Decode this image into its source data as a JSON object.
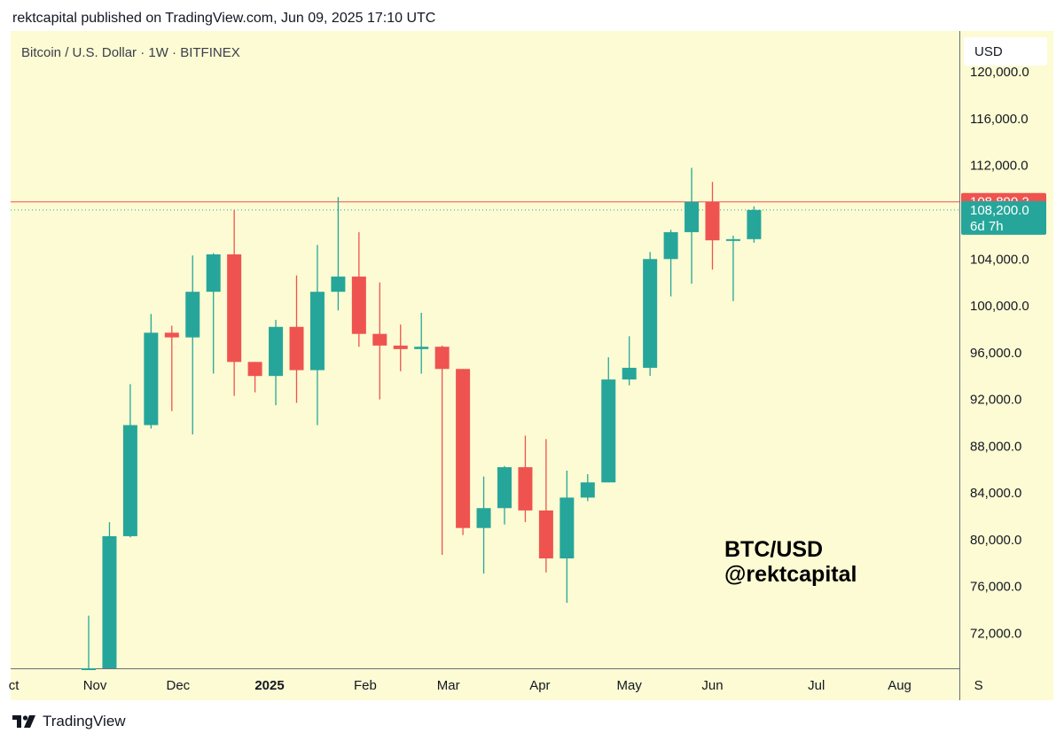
{
  "header": {
    "published": "rektcapital published on TradingView.com, Jun 09, 2025 17:10 UTC"
  },
  "footer": {
    "brand": "TradingView"
  },
  "colors": {
    "up": "#26a69a",
    "down": "#ef5350",
    "background": "#fdfbd3",
    "price_line": "#ef5350"
  },
  "chart_data": {
    "type": "candlestick",
    "symbol": "Bitcoin / U.S. Dollar · 1W · BITFINEX",
    "currency": "USD",
    "watermark": [
      "BTC/USD",
      "@rektcapital"
    ],
    "ylim": [
      69000,
      123500
    ],
    "y_ticks": [
      72000,
      76000,
      80000,
      84000,
      88000,
      92000,
      96000,
      100000,
      104000,
      108000,
      112000,
      116000,
      120000
    ],
    "y_tick_labels": [
      "72,000.0",
      "76,000.0",
      "80,000.0",
      "84,000.0",
      "88,000.0",
      "92,000.0",
      "96,000.0",
      "100,000.0",
      "104,000.0",
      "108,000.0",
      "112,000.0",
      "116,000.0",
      "120,000.0"
    ],
    "x_labels": [
      {
        "label": "ct",
        "slot": -3.6,
        "bold": false
      },
      {
        "label": "Nov",
        "slot": 0.3,
        "bold": false
      },
      {
        "label": "Dec",
        "slot": 4.3,
        "bold": false
      },
      {
        "label": "2025",
        "slot": 8.7,
        "bold": true
      },
      {
        "label": "Feb",
        "slot": 13.3,
        "bold": false
      },
      {
        "label": "Mar",
        "slot": 17.3,
        "bold": false
      },
      {
        "label": "Apr",
        "slot": 21.7,
        "bold": false
      },
      {
        "label": "May",
        "slot": 26.0,
        "bold": false
      },
      {
        "label": "Jun",
        "slot": 30.0,
        "bold": false
      },
      {
        "label": "Jul",
        "slot": 35.0,
        "bold": false
      },
      {
        "label": "Aug",
        "slot": 39.0,
        "bold": false
      },
      {
        "label": "S",
        "slot": 42.8,
        "bold": false
      }
    ],
    "candles": [
      {
        "o": 69000,
        "h": 73500,
        "l": 69000,
        "c": 69000
      },
      {
        "o": 69000,
        "h": 81500,
        "l": 69000,
        "c": 80300
      },
      {
        "o": 80300,
        "h": 93300,
        "l": 80200,
        "c": 89800
      },
      {
        "o": 89800,
        "h": 99300,
        "l": 89500,
        "c": 97700
      },
      {
        "o": 97700,
        "h": 98300,
        "l": 91000,
        "c": 97300
      },
      {
        "o": 97300,
        "h": 104300,
        "l": 89000,
        "c": 101200
      },
      {
        "o": 101200,
        "h": 104500,
        "l": 94200,
        "c": 104400
      },
      {
        "o": 104400,
        "h": 108200,
        "l": 92300,
        "c": 95200
      },
      {
        "o": 95200,
        "h": 94800,
        "l": 92600,
        "c": 94000
      },
      {
        "o": 94000,
        "h": 98800,
        "l": 91500,
        "c": 98200
      },
      {
        "o": 98200,
        "h": 102600,
        "l": 91700,
        "c": 94500
      },
      {
        "o": 94500,
        "h": 105200,
        "l": 89800,
        "c": 101200
      },
      {
        "o": 101200,
        "h": 109300,
        "l": 99600,
        "c": 102500
      },
      {
        "o": 102500,
        "h": 106300,
        "l": 96500,
        "c": 97600
      },
      {
        "o": 97600,
        "h": 102000,
        "l": 92000,
        "c": 96600
      },
      {
        "o": 96600,
        "h": 98400,
        "l": 94400,
        "c": 96300
      },
      {
        "o": 96300,
        "h": 99400,
        "l": 94200,
        "c": 96500
      },
      {
        "o": 96500,
        "h": 96600,
        "l": 78700,
        "c": 94600
      },
      {
        "o": 94600,
        "h": 94500,
        "l": 80400,
        "c": 81000
      },
      {
        "o": 81000,
        "h": 85400,
        "l": 77100,
        "c": 82700
      },
      {
        "o": 82700,
        "h": 86300,
        "l": 81300,
        "c": 86200
      },
      {
        "o": 86200,
        "h": 88900,
        "l": 81500,
        "c": 82500
      },
      {
        "o": 82500,
        "h": 88600,
        "l": 77200,
        "c": 78400
      },
      {
        "o": 78400,
        "h": 85900,
        "l": 74600,
        "c": 83600
      },
      {
        "o": 83600,
        "h": 85600,
        "l": 83300,
        "c": 84900
      },
      {
        "o": 84900,
        "h": 95600,
        "l": 85000,
        "c": 93700
      },
      {
        "o": 93700,
        "h": 97400,
        "l": 93200,
        "c": 94700
      },
      {
        "o": 94700,
        "h": 104600,
        "l": 94000,
        "c": 104000
      },
      {
        "o": 104000,
        "h": 106500,
        "l": 100800,
        "c": 106300
      },
      {
        "o": 106300,
        "h": 111800,
        "l": 101900,
        "c": 108900
      },
      {
        "o": 108900,
        "h": 110600,
        "l": 103100,
        "c": 105600
      },
      {
        "o": 105600,
        "h": 106000,
        "l": 100400,
        "c": 105700
      },
      {
        "o": 105700,
        "h": 108500,
        "l": 105400,
        "c": 108200
      }
    ],
    "price_lines": [
      {
        "value": 108890.2,
        "label": "108,890.2",
        "color": "#ef5350",
        "style": "solid"
      },
      {
        "value": 108200.0,
        "label": "108,200.0",
        "sublabel": "6d 7h",
        "color": "#26a69a",
        "style": "dotted"
      }
    ]
  }
}
